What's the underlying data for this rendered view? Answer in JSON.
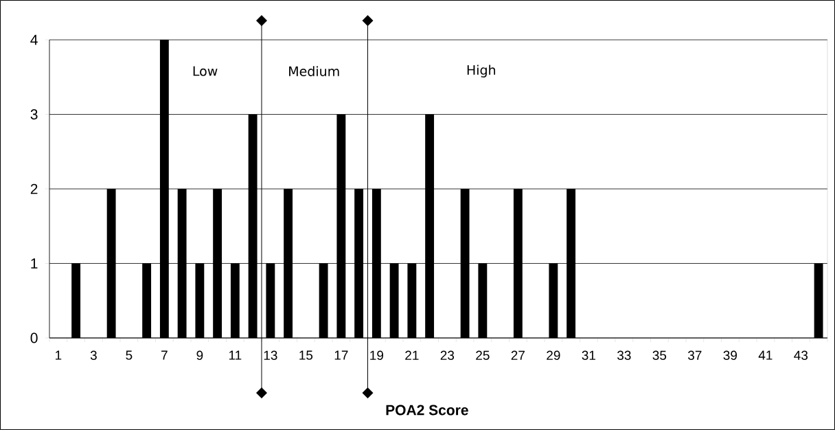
{
  "chart_data": {
    "type": "bar",
    "xlabel": "POA2 Score",
    "x": [
      2,
      4,
      6,
      7,
      8,
      9,
      10,
      11,
      12,
      13,
      14,
      16,
      17,
      18,
      19,
      20,
      21,
      22,
      24,
      25,
      27,
      29,
      30,
      44
    ],
    "values": [
      1,
      2,
      1,
      4,
      2,
      1,
      2,
      1,
      3,
      1,
      2,
      1,
      3,
      2,
      2,
      1,
      1,
      3,
      2,
      1,
      2,
      1,
      2,
      1
    ],
    "color": "#000000",
    "xlim": [
      0.5,
      44.5
    ],
    "xticks": [
      1,
      3,
      5,
      7,
      9,
      11,
      13,
      15,
      17,
      19,
      21,
      23,
      25,
      27,
      29,
      31,
      33,
      35,
      37,
      39,
      41,
      43
    ],
    "ylim": [
      0,
      4
    ],
    "yticks": [
      0,
      1,
      2,
      3,
      4
    ],
    "grid": "y",
    "ref_lines": [
      {
        "axis": "x",
        "value": 12.5,
        "color": "#000000"
      },
      {
        "axis": "x",
        "value": 18.5,
        "color": "#000000"
      }
    ],
    "annotations": [
      "Low",
      "Medium",
      "High"
    ]
  }
}
